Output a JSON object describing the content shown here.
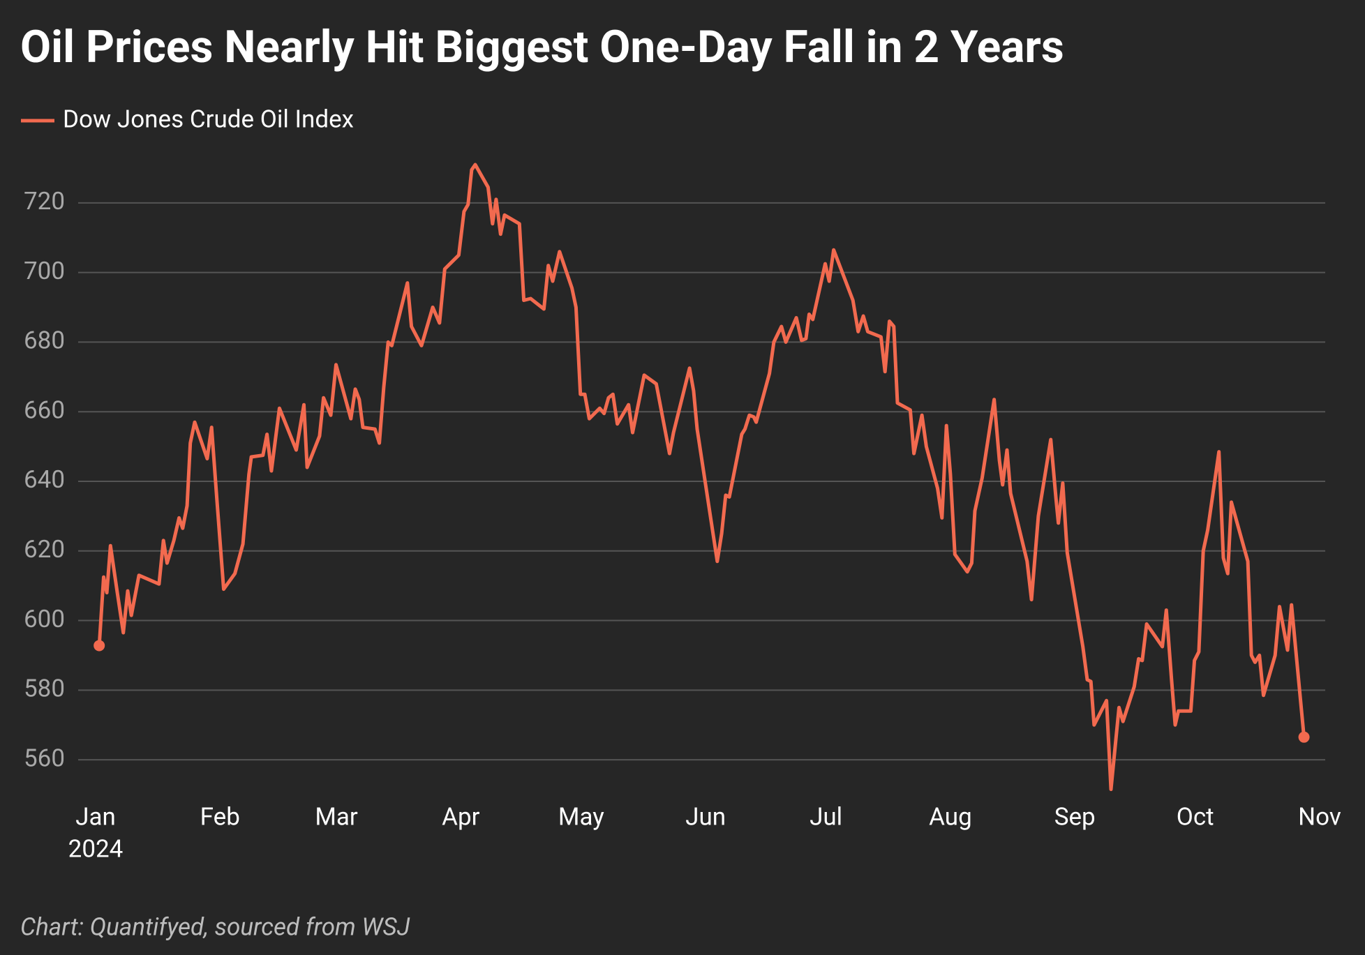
{
  "chart_data": {
    "type": "line",
    "title": "Oil Prices Nearly Hit Biggest One-Day Fall in 2 Years",
    "source": "Chart: Quantifyed, sourced from WSJ",
    "year_label": "2024",
    "xlim": [
      0,
      305
    ],
    "xticks": [
      {
        "value": 0,
        "label": "Jan"
      },
      {
        "value": 31,
        "label": "Feb"
      },
      {
        "value": 60,
        "label": "Mar"
      },
      {
        "value": 91,
        "label": "Apr"
      },
      {
        "value": 121,
        "label": "May"
      },
      {
        "value": 152,
        "label": "Jun"
      },
      {
        "value": 182,
        "label": "Jul"
      },
      {
        "value": 213,
        "label": "Aug"
      },
      {
        "value": 244,
        "label": "Sep"
      },
      {
        "value": 274,
        "label": "Oct"
      },
      {
        "value": 305,
        "label": "Nov"
      }
    ],
    "ylim": [
      550,
      735
    ],
    "yticks": [
      560,
      580,
      600,
      620,
      640,
      660,
      680,
      700,
      720
    ],
    "grid": true,
    "x": [
      0.9,
      2,
      2.8,
      3.7,
      5.4,
      6.9,
      8,
      8.9,
      10.8,
      15.8,
      16.9,
      17.8,
      19.5,
      20.8,
      21.7,
      22.8,
      23.6,
      24.7,
      27.8,
      28.9,
      30.2,
      31.9,
      34.7,
      36.7,
      38.2,
      38.8,
      41.7,
      42.7,
      43.8,
      45.8,
      50,
      51.9,
      52.7,
      55.8,
      56.8,
      58.6,
      59.9,
      63.6,
      64.7,
      65.7,
      66.6,
      69.6,
      70.7,
      71.8,
      72.9,
      73.8,
      77.7,
      78.7,
      81.2,
      84,
      85.7,
      87,
      90.5,
      91.8,
      92.8,
      93.7,
      94.6,
      97.8,
      98.9,
      99.8,
      100.9,
      101.9,
      105.6,
      106.7,
      108.4,
      111.7,
      112.8,
      113.9,
      115.6,
      118.7,
      119.7,
      120.8,
      121.9,
      123,
      125.6,
      126.7,
      127.8,
      128.9,
      130,
      132.8,
      133.8,
      136.7,
      139.7,
      143,
      144,
      148,
      149,
      149.9,
      154.9,
      156,
      157,
      157.9,
      161,
      161.8,
      162.9,
      164,
      164.6,
      167.9,
      169,
      170.9,
      172,
      174.6,
      175.9,
      177,
      177.8,
      178.7,
      181.8,
      182.8,
      183.9,
      188.7,
      190,
      191.3,
      192.4,
      195.7,
      196.7,
      197.8,
      198.9,
      199.8,
      203,
      203.9,
      205.9,
      207,
      209.8,
      210.9,
      212,
      213,
      214.1,
      217.2,
      218.3,
      219.1,
      220.9,
      223.9,
      225.2,
      226,
      227.1,
      228,
      232.1,
      233.2,
      234.9,
      238,
      239.3,
      239.9,
      241,
      242.1,
      246,
      247.1,
      248,
      248.8,
      251.9,
      253,
      255,
      256,
      258.8,
      259.9,
      260.8,
      261.9,
      265.8,
      266.8,
      268.1,
      269,
      269.8,
      272.9,
      273.8,
      274.9,
      276,
      277.1,
      279.9,
      281,
      282.1,
      283,
      287.1,
      288,
      288.9,
      290,
      291,
      293.9,
      295,
      297,
      298,
      301.1
    ],
    "series": [
      {
        "name": "Dow Jones Crude Oil Index",
        "color": "#f26a4f",
        "values": [
          592.8,
          612.5,
          608,
          621.5,
          608,
          596.5,
          608.5,
          601.5,
          613,
          610.5,
          623,
          616.5,
          623,
          629.5,
          626.5,
          633,
          651,
          657,
          646.5,
          655.5,
          635,
          609,
          613.5,
          622,
          642,
          647,
          647.5,
          653.5,
          643,
          661,
          649,
          662,
          644,
          653,
          664,
          659,
          673.5,
          658,
          666.5,
          663.5,
          655.5,
          655,
          651,
          667,
          680,
          679,
          697,
          684.5,
          679,
          690,
          685.5,
          701,
          705,
          717.5,
          719.5,
          729.5,
          731,
          724.5,
          714,
          721,
          711,
          716.5,
          714,
          692,
          692.5,
          689.5,
          702,
          697.5,
          706,
          695.5,
          690,
          665,
          665,
          658,
          661,
          659.5,
          664,
          665,
          656.5,
          662,
          654,
          670.5,
          668,
          648,
          654,
          672.5,
          666,
          655,
          617,
          625,
          636,
          635.5,
          653.5,
          655,
          659,
          658.5,
          657,
          671,
          680,
          684.5,
          680,
          687,
          680.5,
          681,
          688,
          686.5,
          702.5,
          697.5,
          706.5,
          692,
          683,
          687.5,
          683,
          681.5,
          671.5,
          686,
          684.5,
          662.5,
          660.5,
          648,
          659,
          650,
          638,
          629.5,
          656,
          642,
          619,
          614,
          616.5,
          631.5,
          641,
          663.5,
          646,
          639,
          649,
          636.5,
          617,
          606,
          630,
          652,
          635,
          628,
          639.5,
          619.5,
          592.5,
          583,
          582.5,
          570,
          577,
          551.5,
          575,
          571,
          581,
          589,
          588.5,
          599,
          592.5,
          603,
          583,
          570,
          574,
          574,
          588.5,
          591,
          620,
          626,
          648.5,
          618,
          613.5,
          634,
          617,
          590,
          588,
          590,
          578.5,
          590,
          604,
          591.5,
          604.5,
          566.5
        ]
      }
    ]
  }
}
